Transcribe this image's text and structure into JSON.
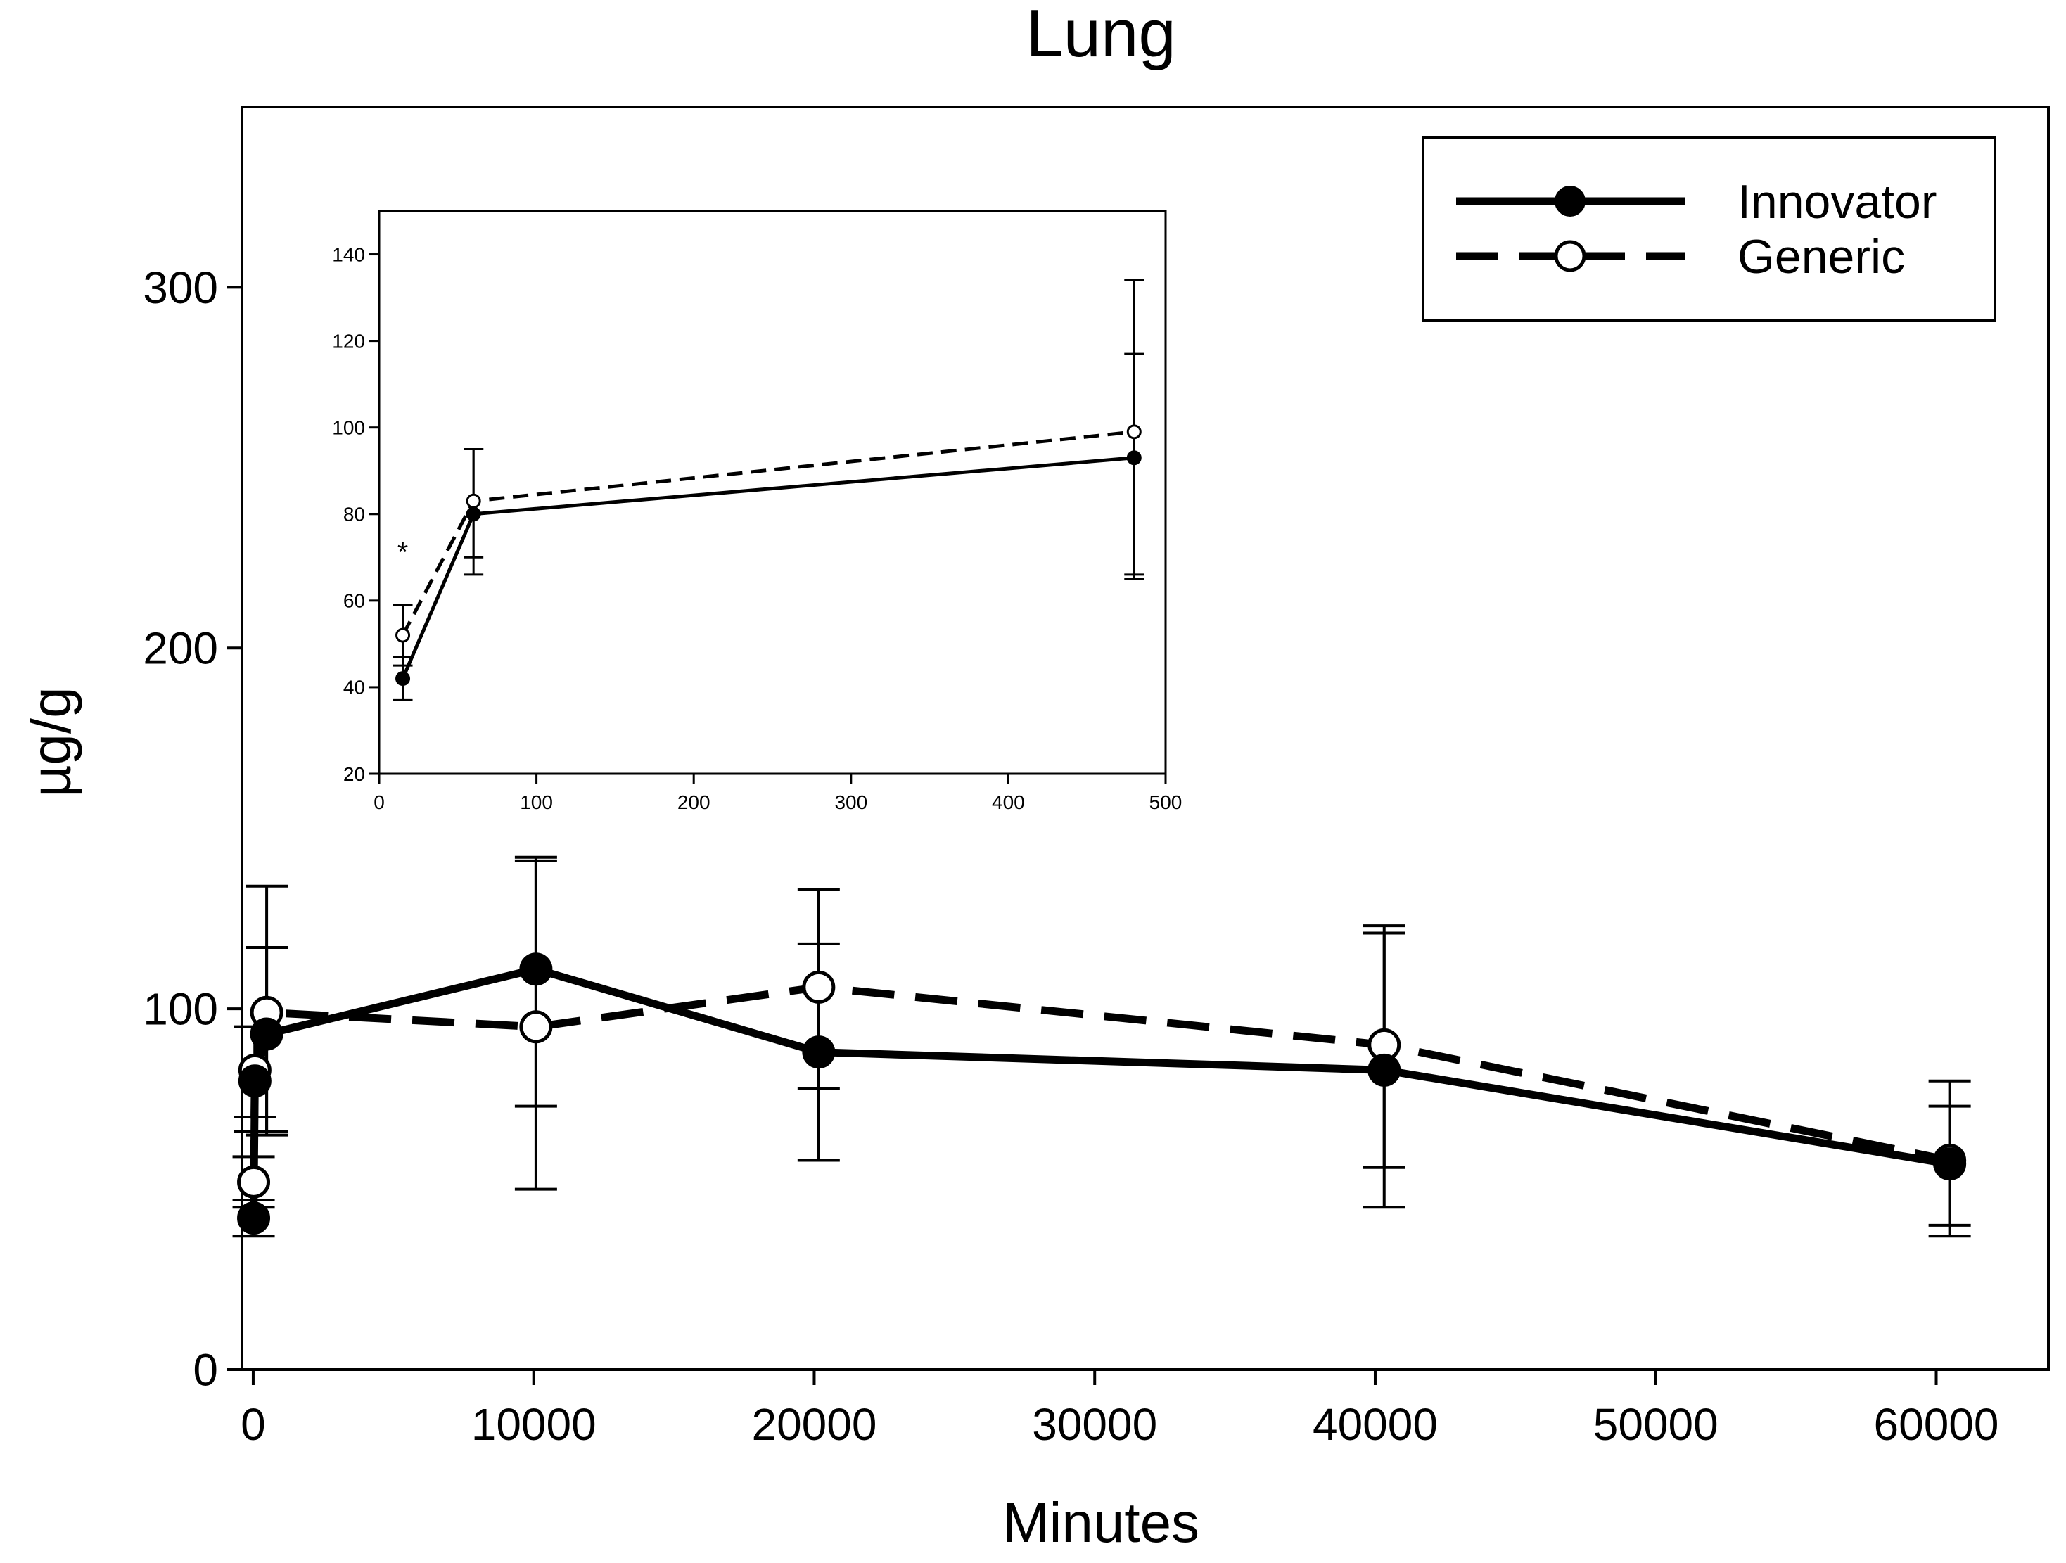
{
  "chart_data": [
    {
      "type": "line",
      "title": "Lung",
      "xlabel": "Minutes",
      "ylabel": "µg/g",
      "xlim": [
        -400,
        64000
      ],
      "ylim": [
        0,
        350
      ],
      "xticks": [
        0,
        10000,
        20000,
        30000,
        40000,
        50000,
        60000
      ],
      "xtick_labels": [
        "0",
        "10000",
        "20000",
        "30000",
        "40000",
        "50000",
        "60000"
      ],
      "yticks": [
        0,
        100,
        200,
        300
      ],
      "ytick_labels": [
        "0",
        "100",
        "200",
        "300"
      ],
      "grid": false,
      "legend_position": "top-right",
      "series": [
        {
          "name": "Innovator",
          "line_style": "solid",
          "marker": "filled-circle",
          "color": "#000000",
          "x": [
            15,
            60,
            480,
            10080,
            20160,
            40320,
            60480
          ],
          "y": [
            42,
            80,
            93,
            111,
            88,
            83,
            57
          ],
          "err_low": [
            37,
            66,
            65,
            50,
            58,
            45,
            37
          ],
          "err_high": [
            47,
            95,
            117,
            141,
            118,
            121,
            80
          ]
        },
        {
          "name": "Generic",
          "line_style": "dashed",
          "marker": "open-circle",
          "color": "#000000",
          "x": [
            15,
            60,
            480,
            10080,
            20160,
            40320,
            60480
          ],
          "y": [
            52,
            83,
            99,
            95,
            106,
            90,
            58
          ],
          "err_low": [
            45,
            70,
            66,
            73,
            78,
            56,
            40
          ],
          "err_high": [
            59,
            95,
            134,
            142,
            133,
            123,
            73
          ]
        }
      ]
    },
    {
      "type": "line",
      "title": "",
      "xlabel": "",
      "ylabel": "",
      "xlim": [
        0,
        500
      ],
      "ylim": [
        20,
        150
      ],
      "xticks": [
        0,
        100,
        200,
        300,
        400,
        500
      ],
      "xtick_labels": [
        "0",
        "100",
        "200",
        "300",
        "400",
        "500"
      ],
      "yticks": [
        20,
        40,
        60,
        80,
        100,
        120,
        140
      ],
      "ytick_labels": [
        "20",
        "40",
        "60",
        "80",
        "100",
        "120",
        "140"
      ],
      "grid": false,
      "annotations": [
        {
          "text": "*",
          "x": 15,
          "y": 69
        }
      ],
      "series": [
        {
          "name": "Innovator",
          "line_style": "solid",
          "marker": "filled-circle",
          "x": [
            15,
            60,
            480
          ],
          "y": [
            42,
            80,
            93
          ],
          "err_low": [
            37,
            66,
            65
          ],
          "err_high": [
            47,
            95,
            117
          ]
        },
        {
          "name": "Generic",
          "line_style": "dashed",
          "marker": "open-circle",
          "x": [
            15,
            60,
            480
          ],
          "y": [
            52,
            83,
            99
          ],
          "err_low": [
            45,
            70,
            66
          ],
          "err_high": [
            59,
            95,
            134
          ]
        }
      ]
    }
  ]
}
